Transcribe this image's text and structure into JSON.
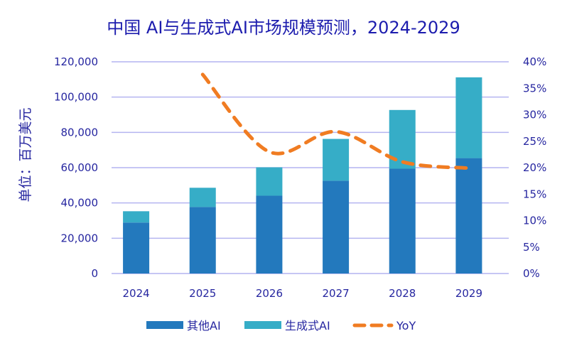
{
  "chart_data": {
    "type": "bar",
    "stacked": true,
    "title": "中国 AI与生成式AI市场规模预测，2024-2029",
    "ylabel": "单位：百万美元",
    "y2label": "",
    "categories": [
      "2024",
      "2025",
      "2026",
      "2027",
      "2028",
      "2029"
    ],
    "ylim": [
      0,
      120000
    ],
    "yticks": [
      "0",
      "20,000",
      "40,000",
      "60,000",
      "80,000",
      "100,000",
      "120,000"
    ],
    "y2lim": [
      0,
      40
    ],
    "y2ticks": [
      "0%",
      "5%",
      "10%",
      "15%",
      "20%",
      "25%",
      "30%",
      "35%",
      "40%"
    ],
    "grid": true,
    "legend_position": "bottom",
    "series": [
      {
        "name": "其他AI",
        "type": "bar",
        "color": "#2379bd",
        "values": [
          28900,
          37700,
          44100,
          52600,
          59400,
          65400
        ]
      },
      {
        "name": "生成式AI",
        "type": "bar",
        "color": "#36adc7",
        "values": [
          6400,
          10900,
          16100,
          23700,
          33300,
          45800
        ]
      },
      {
        "name": "YoY",
        "type": "line",
        "style": "dashed",
        "axis": "right",
        "color": "#f07c22",
        "values": [
          null,
          37.6,
          23.0,
          26.8,
          21.1,
          19.9
        ]
      }
    ],
    "colors": {
      "title": "#1c1cae",
      "text": "#2626a0",
      "grid": "#b4b4f0"
    }
  }
}
